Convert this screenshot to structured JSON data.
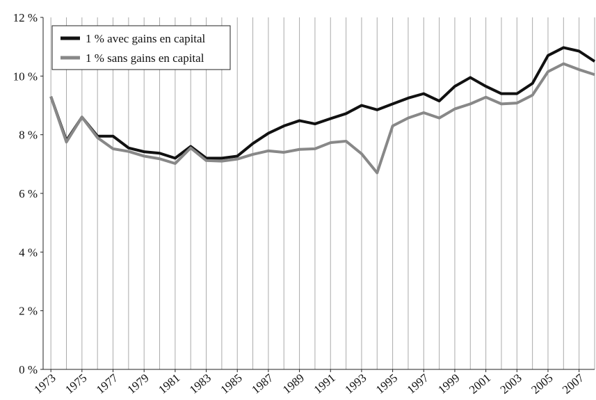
{
  "chart_data": {
    "type": "line",
    "x": [
      1973,
      1974,
      1975,
      1976,
      1977,
      1978,
      1979,
      1980,
      1981,
      1982,
      1983,
      1984,
      1985,
      1986,
      1987,
      1988,
      1989,
      1990,
      1991,
      1992,
      1993,
      1994,
      1995,
      1996,
      1997,
      1998,
      1999,
      2000,
      2001,
      2002,
      2003,
      2004,
      2005,
      2006,
      2007,
      2008
    ],
    "series": [
      {
        "name": "1 % avec gains en capital",
        "color": "#111111",
        "values": [
          9.3,
          7.8,
          8.6,
          7.95,
          7.95,
          7.55,
          7.42,
          7.37,
          7.2,
          7.6,
          7.2,
          7.2,
          7.27,
          7.7,
          8.05,
          8.3,
          8.48,
          8.37,
          8.55,
          8.72,
          9.0,
          8.85,
          9.05,
          9.25,
          9.4,
          9.15,
          9.65,
          9.95,
          9.65,
          9.4,
          9.4,
          9.75,
          10.7,
          10.97,
          10.85,
          10.5
        ]
      },
      {
        "name": "1 % sans gains en capital",
        "color": "#888888",
        "values": [
          9.3,
          7.75,
          8.6,
          7.9,
          7.52,
          7.43,
          7.27,
          7.18,
          7.02,
          7.55,
          7.12,
          7.1,
          7.17,
          7.33,
          7.45,
          7.4,
          7.5,
          7.52,
          7.73,
          7.78,
          7.35,
          6.7,
          8.3,
          8.57,
          8.75,
          8.57,
          8.88,
          9.05,
          9.28,
          9.05,
          9.08,
          9.35,
          10.15,
          10.42,
          10.22,
          10.05
        ]
      }
    ],
    "xlim": [
      1972.5,
      2008
    ],
    "xticks": [
      1973,
      1975,
      1977,
      1979,
      1981,
      1983,
      1985,
      1987,
      1989,
      1991,
      1993,
      1995,
      1997,
      1999,
      2001,
      2003,
      2005,
      2007
    ],
    "ylim": [
      0,
      12
    ],
    "yticks": [
      {
        "value": 0,
        "label": "0 %"
      },
      {
        "value": 2,
        "label": "2 %"
      },
      {
        "value": 4,
        "label": "4 %"
      },
      {
        "value": 6,
        "label": "6 %"
      },
      {
        "value": 8,
        "label": "8 %"
      },
      {
        "value": 10,
        "label": "10 %"
      },
      {
        "value": 12,
        "label": "12 %"
      }
    ],
    "grid": true,
    "legend": "top-left"
  }
}
